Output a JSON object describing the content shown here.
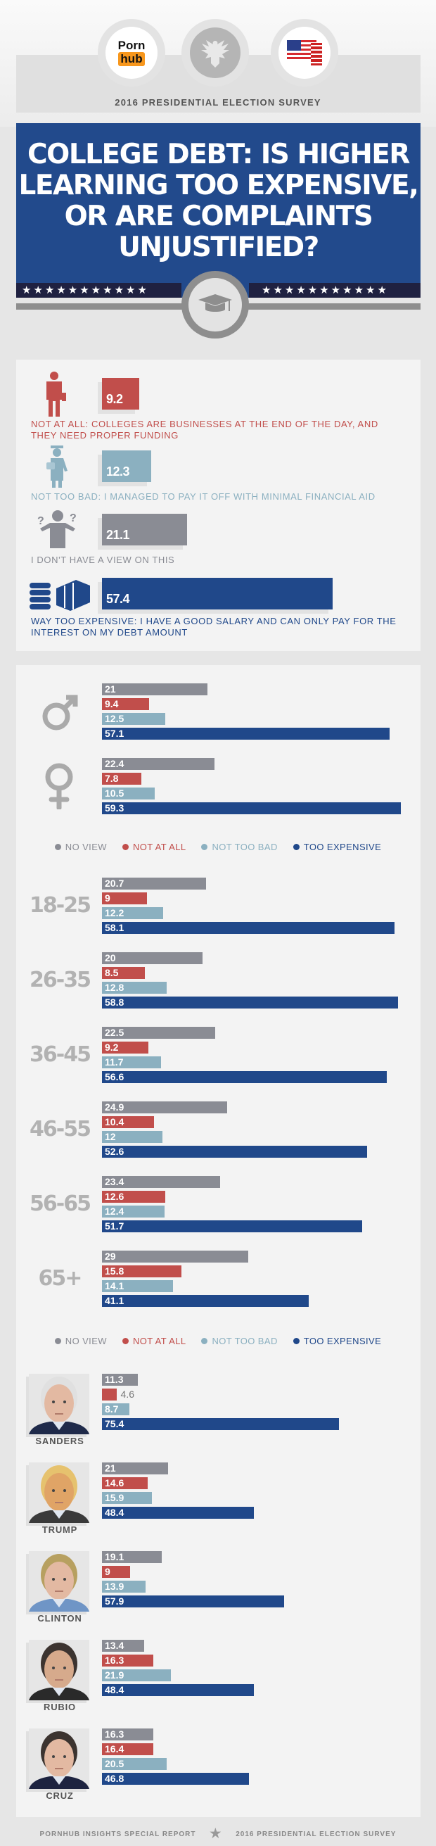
{
  "header": {
    "logo": {
      "word1": "Porn",
      "word2": "hub"
    },
    "subtitle": "2016 PRESIDENTIAL ELECTION SURVEY",
    "title_lines": [
      "COLLEGE DEBT: IS HIGHER",
      "LEARNING TOO EXPENSIVE,",
      "OR ARE COMPLAINTS",
      "UNJUSTIFIED?"
    ],
    "icons": [
      "eagle-seal-icon",
      "us-flag-icon",
      "graduation-cap-icon"
    ]
  },
  "colors": {
    "no_view": "#8a8c94",
    "not_at_all": "#c14e4b",
    "not_too_bad": "#8bb0c0",
    "too_expensive": "#20488a",
    "banner": "#224a8c"
  },
  "overall": [
    {
      "key": "not_at_all",
      "value": 9.2,
      "label": "NOT AT ALL: COLLEGES ARE BUSINESSES AT THE END OF THE DAY, AND THEY NEED PROPER FUNDING",
      "icon": "businessman-icon"
    },
    {
      "key": "not_too_bad",
      "value": 12.3,
      "label": "NOT TOO BAD: I MANAGED TO PAY IT OFF WITH MINIMAL FINANCIAL AID",
      "icon": "graduate-icon"
    },
    {
      "key": "no_view",
      "value": 21.1,
      "label": "I DON'T HAVE A VIEW ON THIS",
      "icon": "confused-person-icon"
    },
    {
      "key": "too_expensive",
      "value": 57.4,
      "label": "WAY TOO EXPENSIVE: I HAVE A GOOD SALARY AND CAN ONLY PAY FOR THE INTEREST ON MY DEBT AMOUNT",
      "icon": "money-stack-icon"
    }
  ],
  "legend": [
    {
      "key": "no_view",
      "label": "NO VIEW"
    },
    {
      "key": "not_at_all",
      "label": "NOT AT ALL"
    },
    {
      "key": "not_too_bad",
      "label": "NOT TOO BAD"
    },
    {
      "key": "too_expensive",
      "label": "TOO EXPENSIVE"
    }
  ],
  "chart_data": [
    {
      "type": "bar",
      "title": "",
      "series_order": [
        "NO VIEW",
        "NOT AT ALL",
        "NOT TOO BAD",
        "TOO EXPENSIVE"
      ],
      "groups": [
        {
          "name": "male",
          "icon": "male-symbol-icon",
          "values": [
            21,
            9.4,
            12.5,
            57.1
          ]
        },
        {
          "name": "female",
          "icon": "female-symbol-icon",
          "values": [
            22.4,
            7.8,
            10.5,
            59.3
          ]
        }
      ]
    },
    {
      "type": "bar",
      "title": "",
      "series_order": [
        "NO VIEW",
        "NOT AT ALL",
        "NOT TOO BAD",
        "TOO EXPENSIVE"
      ],
      "groups": [
        {
          "name": "18-25",
          "values": [
            20.7,
            9,
            12.2,
            58.1
          ]
        },
        {
          "name": "26-35",
          "values": [
            20,
            8.5,
            12.8,
            58.8
          ]
        },
        {
          "name": "36-45",
          "values": [
            22.5,
            9.2,
            11.7,
            56.6
          ]
        },
        {
          "name": "46-55",
          "values": [
            24.9,
            10.4,
            12,
            52.6
          ]
        },
        {
          "name": "56-65",
          "values": [
            23.4,
            12.6,
            12.4,
            51.7
          ]
        },
        {
          "name": "65+",
          "values": [
            29,
            15.8,
            14.1,
            41.1
          ]
        }
      ]
    },
    {
      "type": "bar",
      "title": "",
      "series_order": [
        "NO VIEW",
        "NOT AT ALL",
        "NOT TOO BAD",
        "TOO EXPENSIVE"
      ],
      "groups": [
        {
          "name": "SANDERS",
          "values": [
            11.3,
            4.6,
            8.7,
            75.4
          ],
          "hair": "#e0e0e0",
          "skin": "#e3b9a2",
          "suit": "#1f2a4a"
        },
        {
          "name": "TRUMP",
          "values": [
            21,
            14.6,
            15.9,
            48.4
          ],
          "hair": "#e6c26e",
          "skin": "#e0a466",
          "suit": "#3a3a3a"
        },
        {
          "name": "CLINTON",
          "values": [
            19.1,
            9,
            13.9,
            57.9
          ],
          "hair": "#b7a060",
          "skin": "#e3b9a2",
          "suit": "#6f95c6"
        },
        {
          "name": "RUBIO",
          "values": [
            13.4,
            16.3,
            21.9,
            48.4
          ],
          "hair": "#3c3430",
          "skin": "#d6aa8c",
          "suit": "#2a2a2a"
        },
        {
          "name": "CRUZ",
          "values": [
            16.3,
            16.4,
            20.5,
            46.8
          ],
          "hair": "#3c3430",
          "skin": "#e3b9a2",
          "suit": "#1d2340"
        }
      ]
    }
  ],
  "footer": {
    "left": "PORNHUB INSIGHTS SPECIAL REPORT",
    "right": "2016 PRESIDENTIAL ELECTION SURVEY",
    "icon": "star-icon"
  }
}
